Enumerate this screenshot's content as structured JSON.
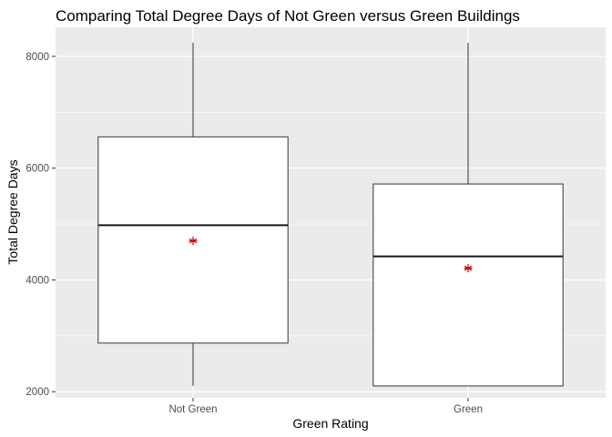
{
  "chart_data": {
    "type": "boxplot",
    "title": "Comparing Total Degree Days of Not Green versus Green Buildings",
    "xlabel": "Green Rating",
    "ylabel": "Total Degree Days",
    "categories": [
      "Not Green",
      "Green"
    ],
    "yticks": [
      2000,
      4000,
      6000,
      8000
    ],
    "ylim": [
      1890,
      8520
    ],
    "boxes": [
      {
        "category": "Not Green",
        "min": 2103,
        "q1": 2870,
        "median": 4979,
        "q3": 6560,
        "max": 8244,
        "mean": 4700
      },
      {
        "category": "Green",
        "min": 2103,
        "q1": 2103,
        "median": 4421,
        "q3": 5717,
        "max": 8244,
        "mean": 4210
      }
    ],
    "mean_marker": "asterisk",
    "colors": {
      "panel_background": "#ebebeb",
      "grid_major": "#ffffff",
      "box_fill": "#ffffff",
      "box_stroke": "#333333",
      "median_stroke": "#1a1a1a",
      "mean_marker": "#cc0000",
      "tick_text": "#4d4d4d"
    },
    "grid": true,
    "legend": "none"
  }
}
